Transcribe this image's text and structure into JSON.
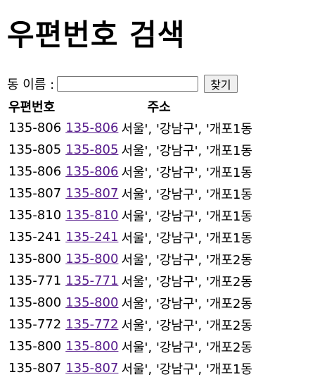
{
  "page": {
    "title": "우편번호 검색"
  },
  "search": {
    "label": "동 이름 :",
    "input_value": "",
    "button_label": "찾기"
  },
  "table": {
    "headers": [
      "우편번호",
      "주소"
    ],
    "rows": [
      {
        "zip": "135-806",
        "link": "135-806",
        "address": "서울', '강남구', '개포1동"
      },
      {
        "zip": "135-805",
        "link": "135-805",
        "address": "서울', '강남구', '개포1동"
      },
      {
        "zip": "135-806",
        "link": "135-806",
        "address": "서울', '강남구', '개포1동"
      },
      {
        "zip": "135-807",
        "link": "135-807",
        "address": "서울', '강남구', '개포1동"
      },
      {
        "zip": "135-810",
        "link": "135-810",
        "address": "서울', '강남구', '개포1동"
      },
      {
        "zip": "135-241",
        "link": "135-241",
        "address": "서울', '강남구', '개포1동"
      },
      {
        "zip": "135-800",
        "link": "135-800",
        "address": "서울', '강남구', '개포2동"
      },
      {
        "zip": "135-771",
        "link": "135-771",
        "address": "서울', '강남구', '개포2동"
      },
      {
        "zip": "135-800",
        "link": "135-800",
        "address": "서울', '강남구', '개포2동"
      },
      {
        "zip": "135-772",
        "link": "135-772",
        "address": "서울', '강남구', '개포2동"
      },
      {
        "zip": "135-800",
        "link": "135-800",
        "address": "서울', '강남구', '개포2동"
      },
      {
        "zip": "135-807",
        "link": "135-807",
        "address": "서울', '강남구', '개포1동"
      }
    ]
  },
  "colors": {
    "link": "#551a8b",
    "text": "#000000",
    "background": "#ffffff"
  }
}
